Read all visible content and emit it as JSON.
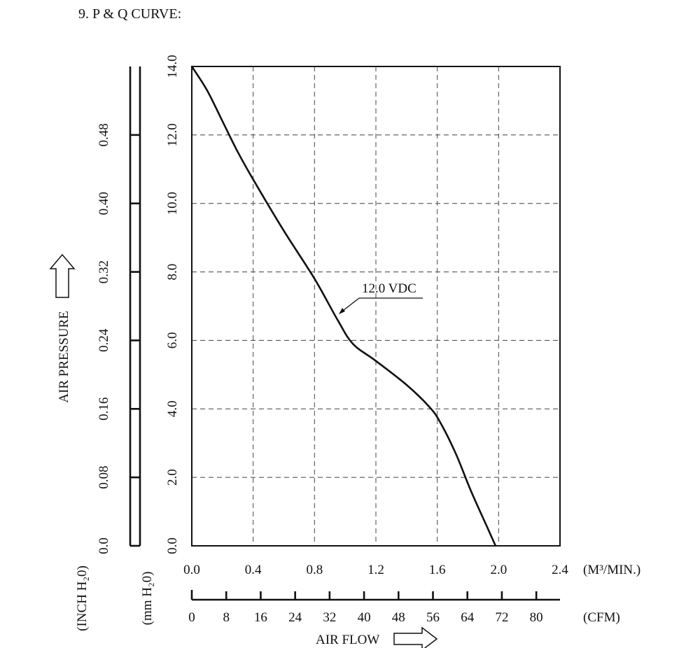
{
  "heading": "9. P & Q CURVE:",
  "chart_data": {
    "type": "line",
    "title": "",
    "series": [
      {
        "name": "12.0 VDC",
        "x": [
          0.0,
          0.1,
          0.2,
          0.3,
          0.4,
          0.6,
          0.8,
          0.95,
          1.05,
          1.2,
          1.4,
          1.55,
          1.62,
          1.72,
          1.82,
          1.92,
          1.98
        ],
        "y": [
          14.0,
          13.3,
          12.4,
          11.5,
          10.7,
          9.2,
          7.8,
          6.6,
          5.9,
          5.4,
          4.7,
          4.05,
          3.6,
          2.7,
          1.6,
          0.6,
          0.0
        ]
      }
    ],
    "xlim": [
      0,
      2.4
    ],
    "ylim": [
      0,
      14
    ],
    "x_ticks": [
      "0.0",
      "0.4",
      "0.8",
      "1.2",
      "1.6",
      "2.0",
      "2.4"
    ],
    "x_unit": "(M³/MIN.)",
    "cfm_ticks": [
      "0",
      "8",
      "16",
      "24",
      "32",
      "40",
      "48",
      "56",
      "64",
      "72",
      "80"
    ],
    "cfm_unit": "(CFM)",
    "mm_ticks": [
      "0.0",
      "2.0",
      "4.0",
      "6.0",
      "8.0",
      "10.0",
      "12.0",
      "14.0"
    ],
    "mm_unit": "(mm H₂0)",
    "inch_ticks": [
      "0.0",
      "0.08",
      "0.16",
      "0.24",
      "0.32",
      "0.40",
      "0.48"
    ],
    "inch_unit": "(INCH H₂0)",
    "xlabel": "AIR FLOW",
    "ylabel": "AIR PRESSURE",
    "curve_label": "12.0 VDC",
    "grid": true
  }
}
